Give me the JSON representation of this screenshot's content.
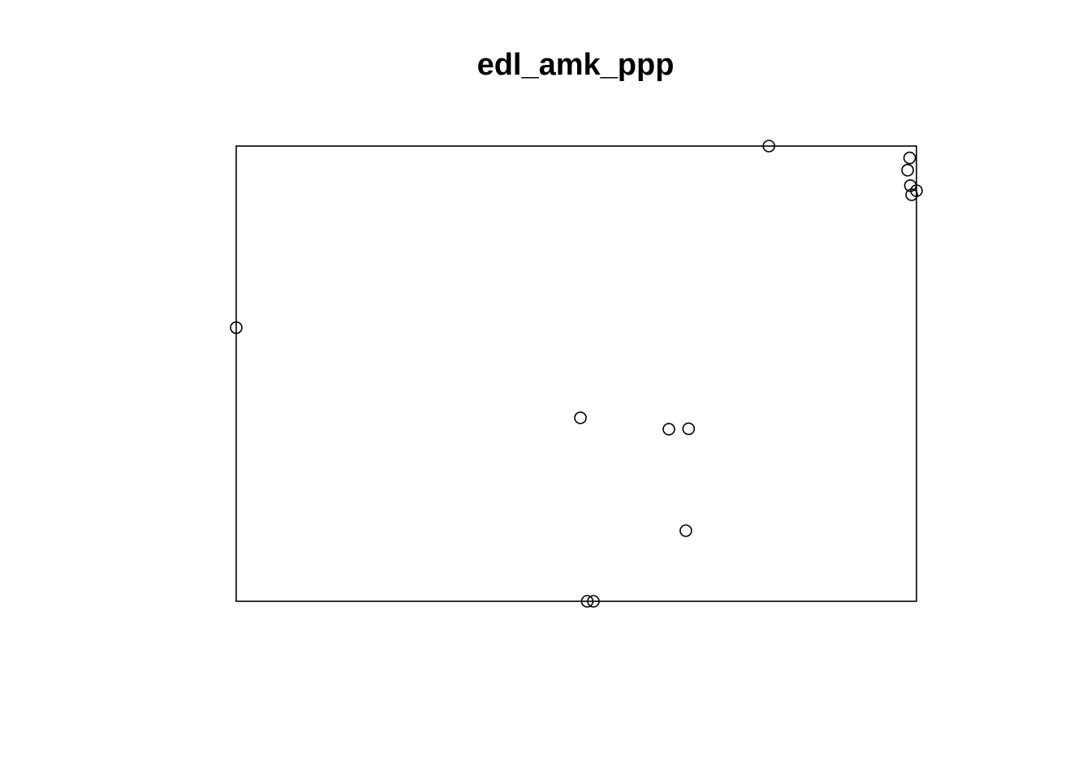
{
  "chart_data": {
    "type": "scatter",
    "title": "edl_amk_ppp",
    "xlabel": "",
    "ylabel": "",
    "axes_shown": false,
    "grid": false,
    "legend": "none",
    "window": "rectangular",
    "marker": "open-circle",
    "marker_color": "#000000",
    "xlim": [
      0,
      100
    ],
    "ylim": [
      0,
      100
    ],
    "points": [
      {
        "x": 78.3,
        "y": 100.0
      },
      {
        "x": 99.0,
        "y": 97.4
      },
      {
        "x": 98.7,
        "y": 94.7
      },
      {
        "x": 99.1,
        "y": 91.3
      },
      {
        "x": 99.3,
        "y": 89.3
      },
      {
        "x": 100.0,
        "y": 90.2
      },
      {
        "x": 0.0,
        "y": 60.1
      },
      {
        "x": 50.6,
        "y": 40.3
      },
      {
        "x": 63.6,
        "y": 37.8
      },
      {
        "x": 66.5,
        "y": 37.9
      },
      {
        "x": 66.1,
        "y": 15.5
      },
      {
        "x": 51.6,
        "y": 0.0
      },
      {
        "x": 52.5,
        "y": 0.0
      }
    ]
  }
}
